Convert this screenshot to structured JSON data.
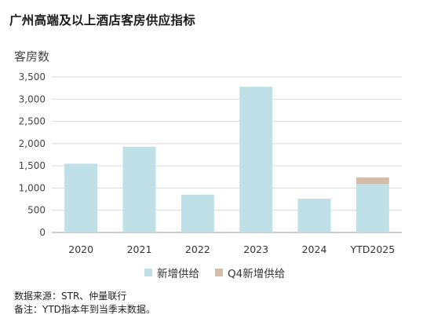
{
  "title": "广州高端及以上酒店客房供应指标",
  "chart_data": {
    "type": "bar",
    "stacked": true,
    "ylabel": "客房数",
    "ylim": [
      0,
      3500
    ],
    "yticks": [
      "0",
      "500",
      "1,000",
      "1,500",
      "2,000",
      "2,500",
      "3,000",
      "3,500"
    ],
    "ytick_values": [
      0,
      500,
      1000,
      1500,
      2000,
      2500,
      3000,
      3500
    ],
    "grid": true,
    "legend_position": "bottom",
    "categories": [
      "2020",
      "2021",
      "2022",
      "2023",
      "2024",
      "YTD2025"
    ],
    "series": [
      {
        "name": "新增供给",
        "color": "#bfe0e6",
        "values": [
          1550,
          1930,
          850,
          3280,
          760,
          1090
        ]
      },
      {
        "name": "Q4新增供给",
        "color": "#d4bcaa",
        "values": [
          0,
          0,
          0,
          0,
          0,
          150
        ]
      }
    ]
  },
  "notes": {
    "source": "数据来源：STR、仲量联行",
    "remark": "备注：YTD指本年到当季末数据。"
  }
}
